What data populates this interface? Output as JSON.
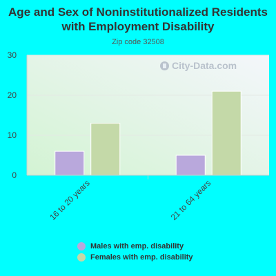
{
  "chart_data": {
    "type": "bar",
    "title": "Age and Sex of Noninstitutionalized Residents with Employment Disability",
    "subtitle": "Zip code 32508",
    "categories": [
      "16 to 20 years",
      "21 to 64 years"
    ],
    "series": [
      {
        "name": "Males with emp. disability",
        "values": [
          6,
          5
        ],
        "color": "#b9a8dc"
      },
      {
        "name": "Females with emp. disability",
        "values": [
          13,
          21
        ],
        "color": "#c4d9a8"
      }
    ],
    "ylim": [
      0,
      30
    ],
    "yticks": [
      0,
      10,
      20,
      30
    ],
    "grid": true,
    "legend": "bottom"
  },
  "watermark": "City-Data.com"
}
